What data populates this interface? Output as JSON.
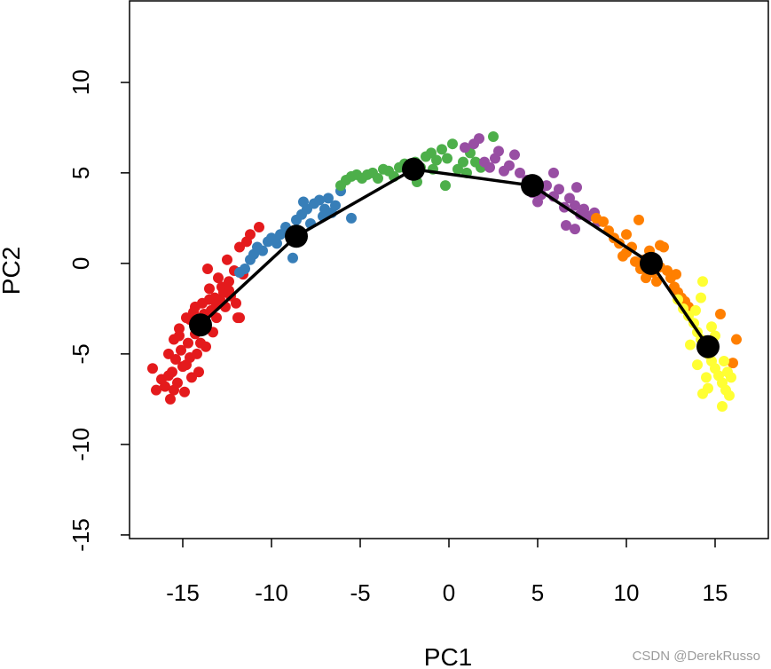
{
  "chart_data": {
    "type": "scatter",
    "xlabel": "PC1",
    "ylabel": "PC2",
    "xlim": [
      -18,
      18
    ],
    "ylim": [
      -15.2,
      14.5
    ],
    "x_ticks": [
      -15,
      -10,
      -5,
      0,
      5,
      10,
      15
    ],
    "y_ticks": [
      -15,
      -10,
      -5,
      0,
      5,
      10
    ],
    "x_tick_labels": [
      "-15",
      "-10",
      "-5",
      "0",
      "5",
      "10",
      "15"
    ],
    "y_tick_labels": [
      "-15",
      "-10",
      "-5",
      "0",
      "5",
      "10"
    ],
    "series": [
      {
        "color": "#e41a1c",
        "points": [
          [
            -16.7,
            -5.8
          ],
          [
            -16.5,
            -7.0
          ],
          [
            -16.2,
            -6.4
          ],
          [
            -16.0,
            -6.8
          ],
          [
            -15.8,
            -6.2
          ],
          [
            -15.7,
            -7.5
          ],
          [
            -15.6,
            -6.0
          ],
          [
            -15.5,
            -4.2
          ],
          [
            -15.4,
            -5.3
          ],
          [
            -15.3,
            -6.6
          ],
          [
            -15.2,
            -3.6
          ],
          [
            -15.1,
            -4.8
          ],
          [
            -15.0,
            -5.7
          ],
          [
            -14.9,
            -7.1
          ],
          [
            -14.8,
            -3.0
          ],
          [
            -14.7,
            -4.4
          ],
          [
            -14.6,
            -5.2
          ],
          [
            -14.5,
            -6.3
          ],
          [
            -14.4,
            -2.7
          ],
          [
            -14.3,
            -3.9
          ],
          [
            -14.2,
            -5.0
          ],
          [
            -14.1,
            -6.0
          ],
          [
            -14.0,
            -4.4
          ],
          [
            -13.9,
            -2.2
          ],
          [
            -13.8,
            -3.3
          ],
          [
            -13.7,
            -4.6
          ],
          [
            -13.6,
            -0.3
          ],
          [
            -13.5,
            -1.4
          ],
          [
            -13.4,
            -2.6
          ],
          [
            -13.3,
            -3.8
          ],
          [
            -13.2,
            -1.9
          ],
          [
            -13.1,
            -3.0
          ],
          [
            -13.0,
            -0.8
          ],
          [
            -12.9,
            -2.0
          ],
          [
            -12.8,
            -1.3
          ],
          [
            -12.6,
            -2.4
          ],
          [
            -12.5,
            0.2
          ],
          [
            -12.4,
            -1.0
          ],
          [
            -12.3,
            -1.8
          ],
          [
            -12.1,
            -0.4
          ],
          [
            -12.0,
            -2.2
          ],
          [
            -11.9,
            -3.0
          ],
          [
            -11.8,
            0.9
          ],
          [
            -11.6,
            -0.6
          ],
          [
            -11.4,
            1.2
          ],
          [
            -11.2,
            1.6
          ],
          [
            -10.7,
            2.0
          ],
          [
            -11.8,
            -3.0
          ],
          [
            -15.2,
            -4.0
          ],
          [
            -14.6,
            -3.1
          ],
          [
            -13.5,
            -2.0
          ],
          [
            -12.7,
            -1.6
          ],
          [
            -15.8,
            -5.0
          ],
          [
            -14.3,
            -2.4
          ],
          [
            -13.1,
            -2.3
          ],
          [
            -12.4,
            -1.5
          ],
          [
            -14.8,
            -5.6
          ],
          [
            -15.5,
            -7.0
          ],
          [
            -13.8,
            -2.8
          ]
        ]
      },
      {
        "color": "#377eb8",
        "points": [
          [
            -11.8,
            -0.5
          ],
          [
            -11.5,
            -0.3
          ],
          [
            -11.2,
            0.2
          ],
          [
            -11.0,
            0.5
          ],
          [
            -10.8,
            0.9
          ],
          [
            -10.5,
            0.7
          ],
          [
            -10.2,
            1.2
          ],
          [
            -10.0,
            1.4
          ],
          [
            -9.7,
            1.1
          ],
          [
            -9.5,
            1.6
          ],
          [
            -9.2,
            2.0
          ],
          [
            -9.0,
            1.8
          ],
          [
            -8.8,
            0.3
          ],
          [
            -8.6,
            2.4
          ],
          [
            -8.3,
            2.7
          ],
          [
            -8.0,
            3.0
          ],
          [
            -7.8,
            2.2
          ],
          [
            -7.6,
            3.3
          ],
          [
            -7.3,
            3.5
          ],
          [
            -7.1,
            2.6
          ],
          [
            -6.8,
            3.6
          ],
          [
            -6.6,
            2.8
          ],
          [
            -6.4,
            3.2
          ],
          [
            -6.1,
            4.0
          ],
          [
            -5.5,
            2.5
          ],
          [
            -8.2,
            3.4
          ],
          [
            -7.0,
            3.0
          ]
        ]
      },
      {
        "color": "#4daf4a",
        "points": [
          [
            -6.1,
            4.3
          ],
          [
            -5.8,
            4.6
          ],
          [
            -5.5,
            4.8
          ],
          [
            -5.2,
            4.9
          ],
          [
            -4.9,
            4.7
          ],
          [
            -4.6,
            4.9
          ],
          [
            -4.3,
            5.0
          ],
          [
            -4.0,
            4.7
          ],
          [
            -3.7,
            5.2
          ],
          [
            -3.4,
            5.1
          ],
          [
            -3.1,
            4.8
          ],
          [
            -2.8,
            5.3
          ],
          [
            -2.5,
            5.5
          ],
          [
            -2.2,
            5.0
          ],
          [
            -1.9,
            5.6
          ],
          [
            -1.6,
            5.3
          ],
          [
            -1.3,
            5.9
          ],
          [
            -1.0,
            6.1
          ],
          [
            -0.7,
            5.7
          ],
          [
            -0.4,
            6.3
          ],
          [
            -0.1,
            5.8
          ],
          [
            0.2,
            6.6
          ],
          [
            0.5,
            5.2
          ],
          [
            -0.2,
            4.3
          ],
          [
            0.8,
            5.6
          ],
          [
            1.2,
            6.1
          ],
          [
            1.5,
            5.6
          ],
          [
            1.8,
            5.3
          ],
          [
            1.0,
            5.0
          ],
          [
            -0.9,
            5.2
          ],
          [
            2.5,
            7.0
          ],
          [
            -1.8,
            4.5
          ]
        ]
      },
      {
        "color": "#984ea3",
        "points": [
          [
            0.9,
            6.4
          ],
          [
            1.4,
            6.6
          ],
          [
            1.7,
            6.9
          ],
          [
            2.0,
            5.6
          ],
          [
            2.3,
            5.3
          ],
          [
            2.6,
            5.8
          ],
          [
            2.8,
            6.2
          ],
          [
            3.1,
            5.1
          ],
          [
            3.4,
            5.4
          ],
          [
            3.7,
            6.0
          ],
          [
            4.0,
            5.0
          ],
          [
            4.4,
            4.6
          ],
          [
            4.8,
            4.2
          ],
          [
            5.2,
            3.8
          ],
          [
            5.0,
            3.4
          ],
          [
            5.5,
            4.3
          ],
          [
            5.9,
            3.7
          ],
          [
            6.2,
            4.1
          ],
          [
            6.5,
            3.1
          ],
          [
            6.8,
            3.6
          ],
          [
            7.1,
            3.2
          ],
          [
            7.4,
            2.7
          ],
          [
            7.6,
            3.0
          ],
          [
            7.9,
            2.6
          ],
          [
            8.2,
            2.8
          ],
          [
            8.4,
            2.3
          ],
          [
            6.6,
            2.1
          ],
          [
            7.1,
            1.9
          ],
          [
            7.2,
            4.2
          ],
          [
            5.9,
            5.0
          ],
          [
            4.7,
            3.9
          ]
        ]
      },
      {
        "color": "#ff7f00",
        "points": [
          [
            8.3,
            2.5
          ],
          [
            8.7,
            2.3
          ],
          [
            9.0,
            1.8
          ],
          [
            9.3,
            1.4
          ],
          [
            9.6,
            1.1
          ],
          [
            9.8,
            0.4
          ],
          [
            10.0,
            1.6
          ],
          [
            10.3,
            0.9
          ],
          [
            10.5,
            0.1
          ],
          [
            10.8,
            -0.3
          ],
          [
            11.1,
            -0.8
          ],
          [
            11.3,
            0.7
          ],
          [
            11.5,
            -0.5
          ],
          [
            11.7,
            -1.0
          ],
          [
            11.9,
            -0.2
          ],
          [
            12.1,
            0.9
          ],
          [
            12.3,
            -0.4
          ],
          [
            12.5,
            -0.8
          ],
          [
            12.7,
            -1.3
          ],
          [
            12.9,
            -1.6
          ],
          [
            13.1,
            -1.9
          ],
          [
            13.3,
            -2.1
          ],
          [
            13.5,
            -2.4
          ],
          [
            11.0,
            0.2
          ],
          [
            10.0,
            0.6
          ],
          [
            10.7,
            2.4
          ],
          [
            11.9,
            1.0
          ],
          [
            15.3,
            -2.8
          ],
          [
            16.2,
            -4.2
          ],
          [
            16.0,
            -5.5
          ],
          [
            12.8,
            -0.6
          ]
        ]
      },
      {
        "color": "#ffff33",
        "points": [
          [
            12.9,
            -2.0
          ],
          [
            13.2,
            -2.5
          ],
          [
            13.5,
            -2.9
          ],
          [
            13.8,
            -3.3
          ],
          [
            14.0,
            -3.8
          ],
          [
            14.2,
            -4.2
          ],
          [
            14.4,
            -4.6
          ],
          [
            14.6,
            -5.0
          ],
          [
            14.8,
            -5.4
          ],
          [
            15.0,
            -5.8
          ],
          [
            15.2,
            -6.2
          ],
          [
            15.4,
            -6.6
          ],
          [
            15.6,
            -7.0
          ],
          [
            15.8,
            -7.3
          ],
          [
            14.3,
            -7.2
          ],
          [
            14.6,
            -6.9
          ],
          [
            14.0,
            -5.6
          ],
          [
            13.6,
            -4.5
          ],
          [
            15.0,
            -4.0
          ],
          [
            15.5,
            -5.4
          ],
          [
            15.9,
            -6.3
          ],
          [
            14.2,
            -1.9
          ],
          [
            14.3,
            -1.0
          ],
          [
            15.4,
            -7.9
          ],
          [
            14.8,
            -3.5
          ],
          [
            13.9,
            -2.6
          ],
          [
            14.5,
            -6.3
          ],
          [
            15.7,
            -6.0
          ]
        ]
      }
    ],
    "curve": {
      "color": "#000000",
      "points": [
        [
          -14.0,
          -3.4
        ],
        [
          -8.6,
          1.5
        ],
        [
          -2.0,
          5.2
        ],
        [
          4.7,
          4.3
        ],
        [
          11.4,
          0.0
        ],
        [
          14.6,
          -4.6
        ]
      ]
    }
  },
  "watermark": "CSDN @DerekRusso"
}
